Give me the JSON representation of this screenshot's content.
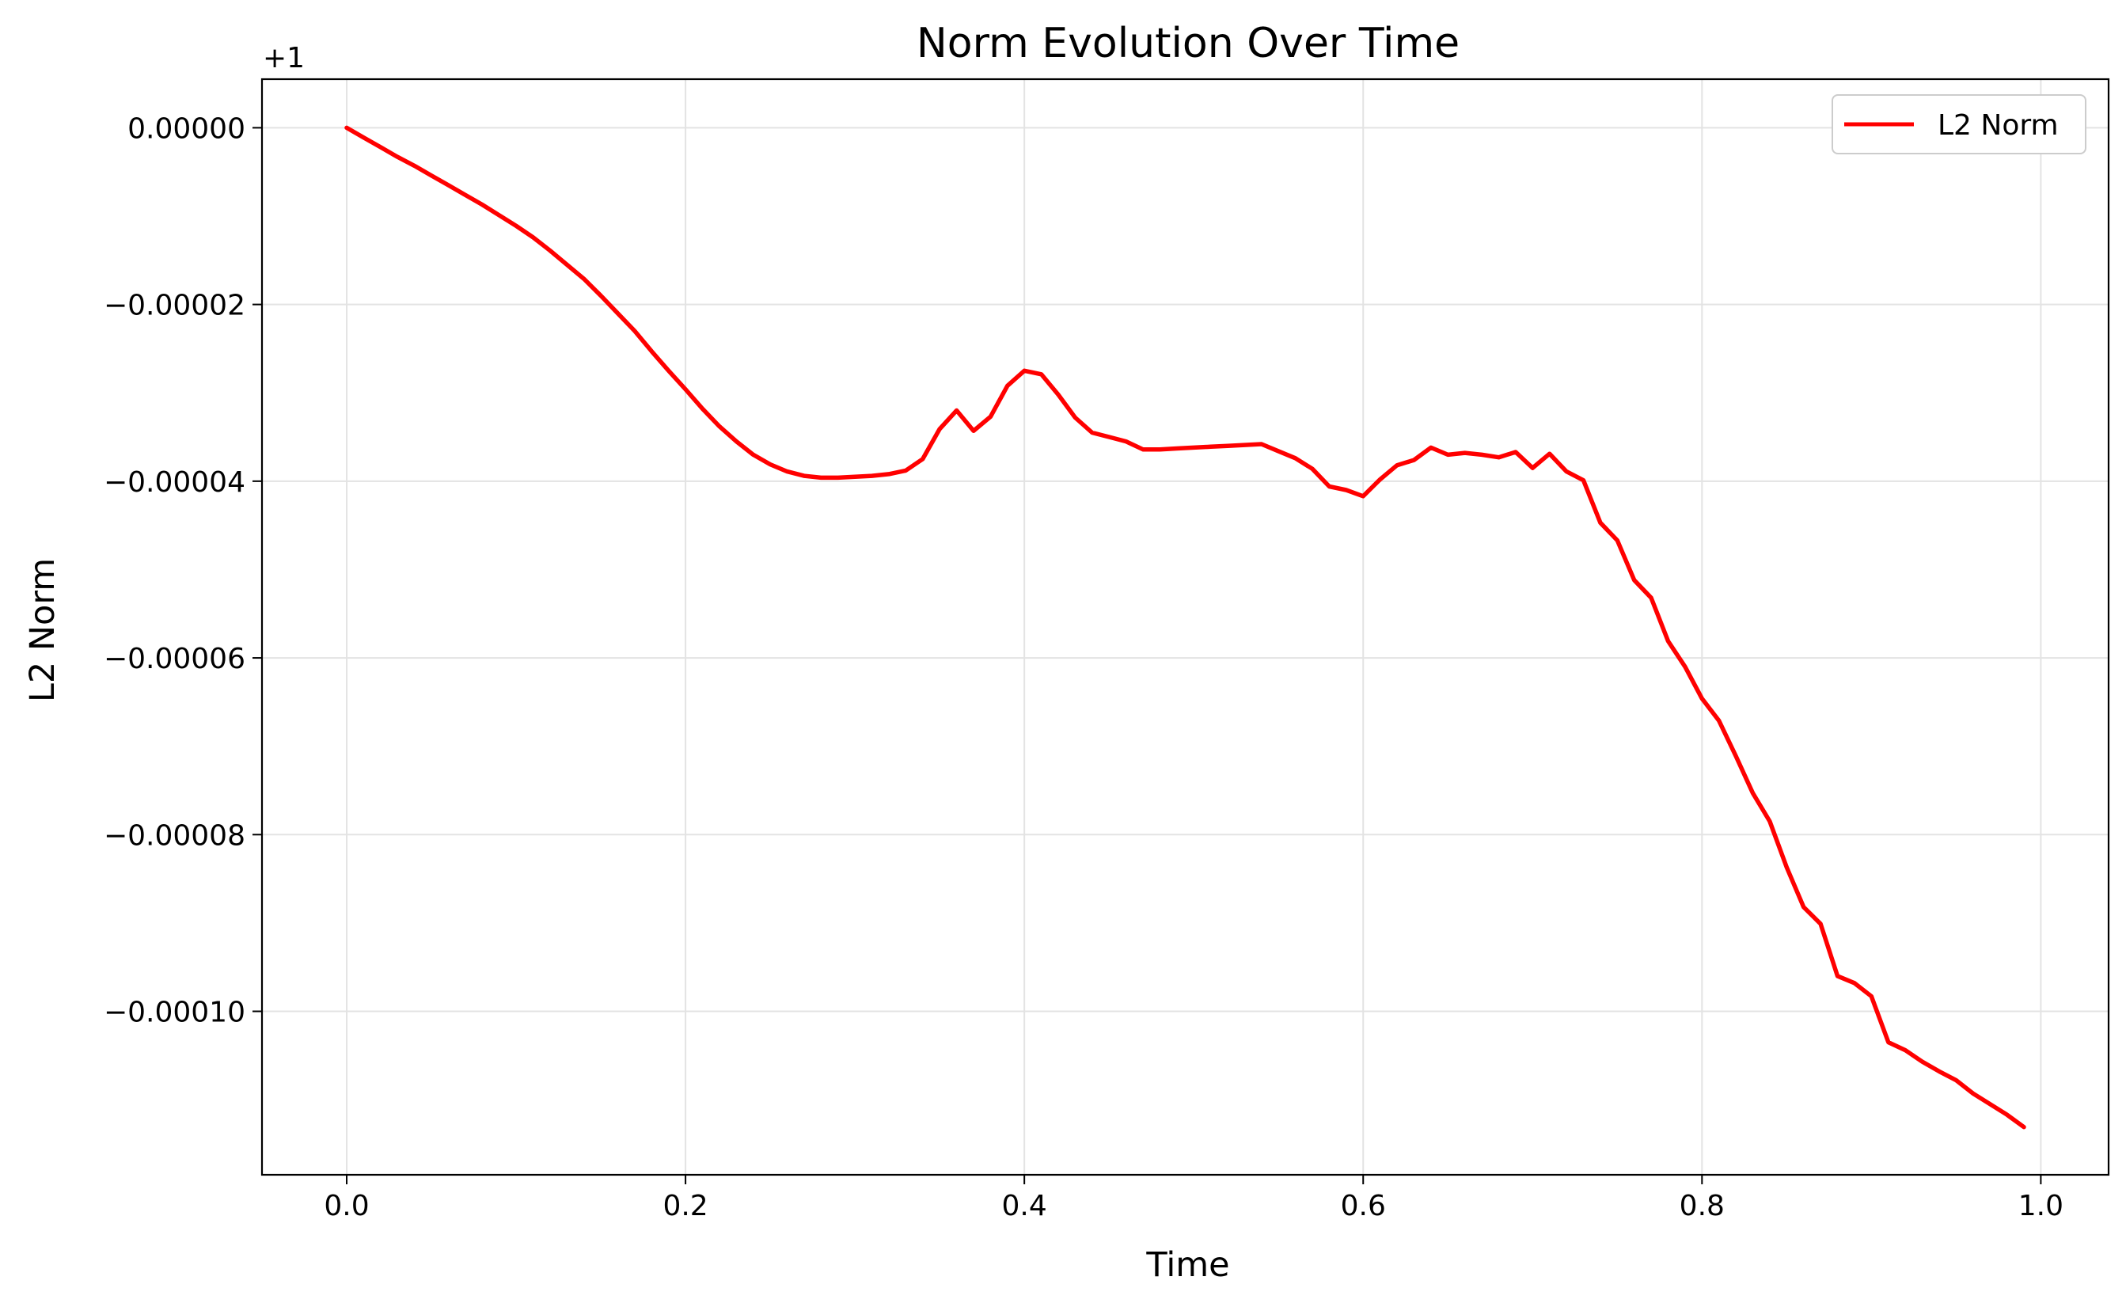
{
  "chart_data": {
    "type": "line",
    "title": "Norm Evolution Over Time",
    "xlabel": "Time",
    "ylabel": "L2 Norm",
    "offset_label": "+1",
    "xlim": [
      -0.05,
      1.04
    ],
    "ylim": [
      -0.0001185,
      5.5e-06
    ],
    "x_ticks": [
      {
        "value": 0.0,
        "label": "0.0"
      },
      {
        "value": 0.2,
        "label": "0.2"
      },
      {
        "value": 0.4,
        "label": "0.4"
      },
      {
        "value": 0.6,
        "label": "0.6"
      },
      {
        "value": 0.8,
        "label": "0.8"
      },
      {
        "value": 1.0,
        "label": "1.0"
      }
    ],
    "y_ticks": [
      {
        "value": 0.0,
        "label": "0.00000"
      },
      {
        "value": -2e-05,
        "label": "−0.00002"
      },
      {
        "value": -4e-05,
        "label": "−0.00004"
      },
      {
        "value": -6e-05,
        "label": "−0.00006"
      },
      {
        "value": -8e-05,
        "label": "−0.00008"
      },
      {
        "value": -0.0001,
        "label": "−0.00010"
      }
    ],
    "grid": true,
    "legend_position": "top-right",
    "series": [
      {
        "name": "L2 Norm",
        "color": "#ff0000",
        "x": [
          0.0,
          0.01,
          0.02,
          0.03,
          0.04,
          0.05,
          0.06,
          0.07,
          0.08,
          0.09,
          0.1,
          0.11,
          0.12,
          0.13,
          0.14,
          0.15,
          0.16,
          0.17,
          0.18,
          0.19,
          0.2,
          0.21,
          0.22,
          0.23,
          0.24,
          0.25,
          0.26,
          0.27,
          0.28,
          0.29,
          0.3,
          0.31,
          0.32,
          0.33,
          0.34,
          0.35,
          0.36,
          0.37,
          0.38,
          0.39,
          0.4,
          0.41,
          0.42,
          0.43,
          0.44,
          0.45,
          0.46,
          0.47,
          0.48,
          0.49,
          0.5,
          0.51,
          0.52,
          0.53,
          0.54,
          0.55,
          0.56,
          0.57,
          0.58,
          0.59,
          0.6,
          0.61,
          0.62,
          0.63,
          0.64,
          0.65,
          0.66,
          0.67,
          0.68,
          0.69,
          0.7,
          0.71,
          0.72,
          0.73,
          0.74,
          0.75,
          0.76,
          0.77,
          0.78,
          0.79,
          0.8,
          0.81,
          0.82,
          0.83,
          0.84,
          0.85,
          0.86,
          0.87,
          0.88,
          0.89,
          0.9,
          0.91,
          0.92,
          0.93,
          0.94,
          0.95,
          0.96,
          0.97,
          0.98,
          0.99
        ],
        "y": [
          0.0,
          -1.1e-06,
          -2.2e-06,
          -3.3e-06,
          -4.3e-06,
          -5.4e-06,
          -6.5e-06,
          -7.6e-06,
          -8.7e-06,
          -9.9e-06,
          -1.11e-05,
          -1.24e-05,
          -1.39e-05,
          -1.55e-05,
          -1.71e-05,
          -1.9e-05,
          -2.1e-05,
          -2.3e-05,
          -2.53e-05,
          -2.75e-05,
          -2.96e-05,
          -3.18e-05,
          -3.38e-05,
          -3.55e-05,
          -3.7e-05,
          -3.81e-05,
          -3.89e-05,
          -3.94e-05,
          -3.96e-05,
          -3.96e-05,
          -3.95e-05,
          -3.94e-05,
          -3.92e-05,
          -3.88e-05,
          -3.75e-05,
          -3.41e-05,
          -3.2e-05,
          -3.43e-05,
          -3.27e-05,
          -2.92e-05,
          -2.75e-05,
          -2.79e-05,
          -3.02e-05,
          -3.28e-05,
          -3.45e-05,
          -3.5e-05,
          -3.55e-05,
          -3.64e-05,
          -3.64e-05,
          -3.63e-05,
          -3.62e-05,
          -3.61e-05,
          -3.6e-05,
          -3.59e-05,
          -3.58e-05,
          -3.66e-05,
          -3.74e-05,
          -3.86e-05,
          -4.06e-05,
          -4.1e-05,
          -4.17e-05,
          -3.98e-05,
          -3.82e-05,
          -3.76e-05,
          -3.62e-05,
          -3.7e-05,
          -3.68e-05,
          -3.7e-05,
          -3.73e-05,
          -3.67e-05,
          -3.85e-05,
          -3.69e-05,
          -3.89e-05,
          -3.99e-05,
          -4.47e-05,
          -4.67e-05,
          -5.12e-05,
          -5.32e-05,
          -5.81e-05,
          -6.1e-05,
          -6.46e-05,
          -6.71e-05,
          -7.11e-05,
          -7.53e-05,
          -7.85e-05,
          -8.37e-05,
          -8.82e-05,
          -9.01e-05,
          -9.6e-05,
          -9.68e-05,
          -9.83e-05,
          -0.0001035,
          -0.0001044,
          -0.0001057,
          -0.0001068,
          -0.0001078,
          -0.0001093,
          -0.0001105,
          -0.0001117,
          -0.0001131
        ]
      }
    ]
  }
}
